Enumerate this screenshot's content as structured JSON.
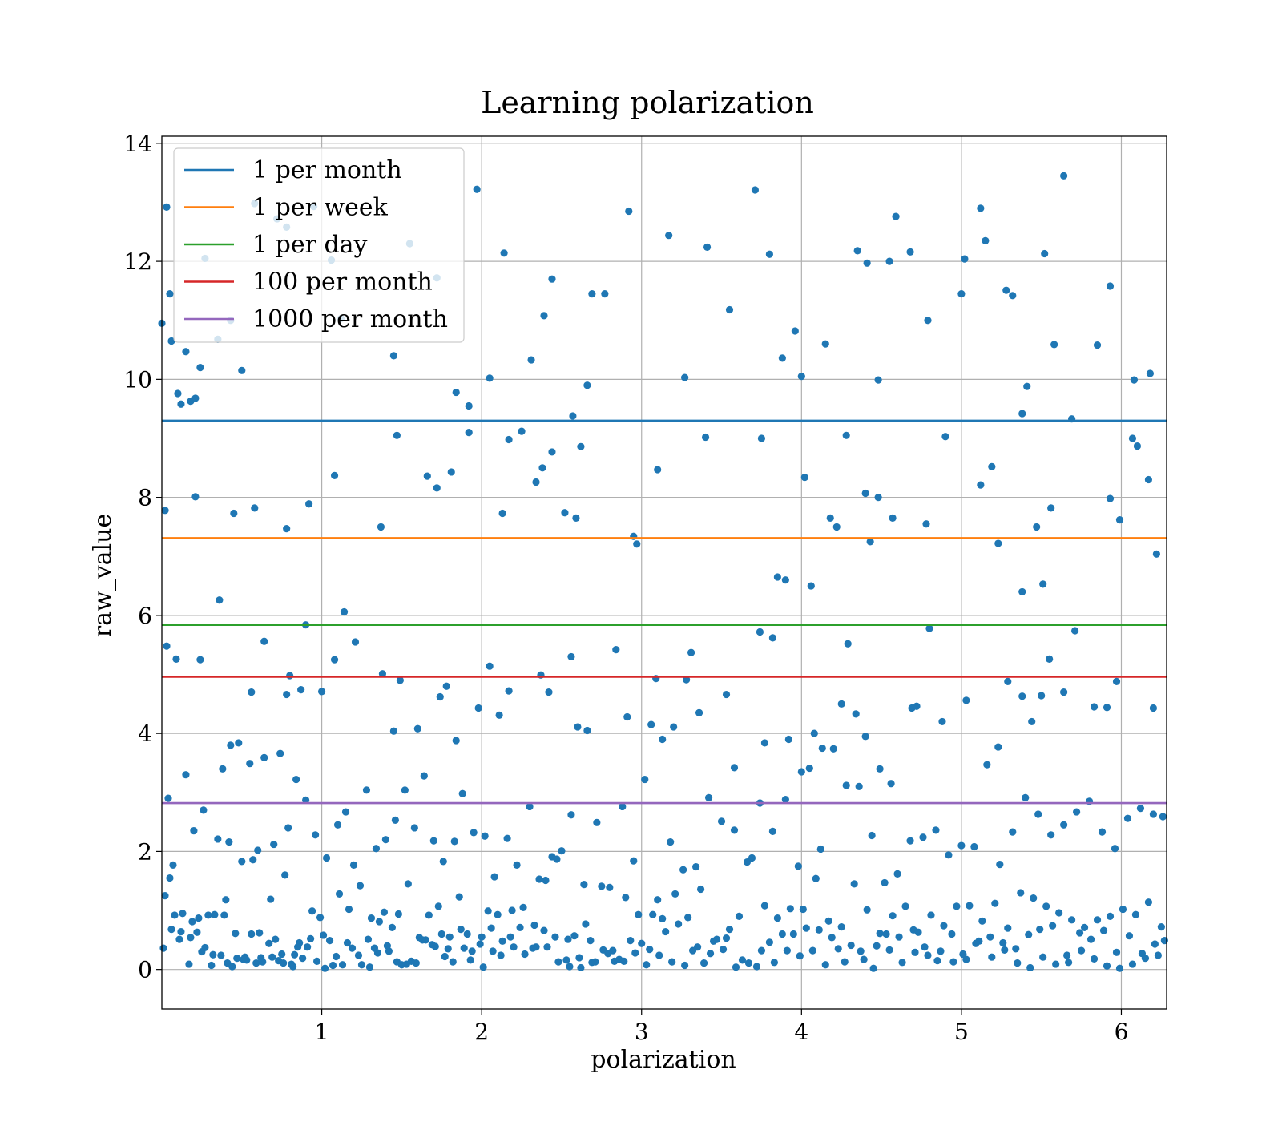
{
  "chart_data": {
    "type": "scatter",
    "title": "Learning polarization",
    "xlabel": "polarization",
    "ylabel": "raw_value",
    "xlim": [
      0,
      6.2832
    ],
    "ylim": [
      -0.67,
      14.12
    ],
    "xticks": [
      1,
      2,
      3,
      4,
      5,
      6
    ],
    "yticks": [
      0,
      2,
      4,
      6,
      8,
      10,
      12,
      14
    ],
    "grid": true,
    "legend_position": "top-left",
    "point_color": "#1f77b4",
    "point_count_note": "",
    "horizontal_lines": [
      {
        "name": "1 per month",
        "y": 9.3,
        "color": "#1f77b4"
      },
      {
        "name": "1 per week",
        "y": 7.31,
        "color": "#ff7f0e"
      },
      {
        "name": "1 per day",
        "y": 5.84,
        "color": "#2ca02c"
      },
      {
        "name": "100 per month",
        "y": 4.96,
        "color": "#d62728"
      },
      {
        "name": "1000 per month",
        "y": 2.82,
        "color": "#9467bd"
      }
    ],
    "points": {
      "x": [
        0.0,
        0.03,
        0.05,
        0.06,
        0.1,
        0.12,
        0.15,
        0.18,
        0.21,
        0.24,
        0.27,
        0.35,
        0.43,
        0.5,
        0.58,
        0.72,
        0.78,
        0.95,
        1.06,
        1.12,
        1.45,
        1.55,
        1.72,
        1.84,
        1.92,
        1.97,
        2.05,
        2.14,
        2.31,
        2.39,
        2.44,
        2.57,
        2.66,
        2.69,
        2.77,
        2.92,
        3.17,
        3.27,
        3.41,
        3.55,
        3.71,
        3.8,
        3.88,
        3.96,
        4.0,
        4.15,
        4.35,
        4.41,
        4.48,
        4.55,
        4.59,
        4.68,
        4.79,
        5.0,
        5.02,
        5.12,
        5.15,
        5.28,
        5.32,
        5.38,
        5.41,
        5.52,
        5.58,
        5.64,
        5.69,
        5.85,
        5.93,
        6.08,
        6.18,
        0.02,
        0.21,
        0.36,
        0.45,
        0.58,
        0.78,
        0.92,
        1.08,
        1.14,
        1.37,
        1.47,
        1.66,
        1.72,
        1.81,
        1.92,
        2.13,
        2.17,
        2.25,
        2.34,
        2.38,
        2.44,
        2.52,
        2.59,
        2.62,
        2.95,
        2.97,
        3.1,
        3.4,
        3.75,
        3.85,
        3.9,
        4.02,
        4.06,
        4.18,
        4.22,
        4.28,
        4.4,
        4.43,
        4.48,
        4.57,
        4.78,
        4.9,
        5.12,
        5.19,
        5.23,
        5.38,
        5.47,
        5.51,
        5.56,
        5.93,
        5.99,
        6.07,
        6.1,
        6.17,
        6.22,
        0.03,
        0.09,
        0.24,
        0.43,
        0.48,
        0.56,
        0.64,
        0.78,
        0.8,
        0.87,
        0.9,
        1.0,
        1.08,
        1.21,
        1.38,
        1.45,
        1.49,
        1.6,
        1.74,
        1.78,
        1.84,
        1.98,
        2.05,
        2.11,
        2.17,
        2.37,
        2.42,
        2.56,
        2.6,
        2.66,
        2.84,
        2.91,
        3.06,
        3.09,
        3.13,
        3.2,
        3.28,
        3.31,
        3.36,
        3.53,
        3.58,
        3.74,
        3.77,
        3.82,
        3.92,
        4.0,
        4.08,
        4.13,
        4.25,
        4.29,
        4.34,
        4.4,
        4.49,
        4.56,
        4.69,
        4.72,
        4.8,
        4.88,
        5.03,
        5.23,
        5.29,
        5.38,
        5.44,
        5.5,
        5.55,
        5.64,
        5.71,
        5.83,
        5.91,
        5.97,
        6.2,
        0.04,
        0.07,
        0.15,
        0.2,
        0.26,
        0.35,
        0.38,
        0.42,
        0.5,
        0.55,
        0.6,
        0.64,
        0.7,
        0.74,
        0.79,
        0.84,
        0.9,
        0.96,
        1.03,
        1.1,
        1.15,
        1.2,
        1.28,
        1.34,
        1.4,
        1.46,
        1.52,
        1.58,
        1.64,
        1.7,
        1.76,
        1.83,
        1.88,
        1.95,
        2.02,
        2.08,
        2.16,
        2.22,
        2.3,
        2.36,
        2.44,
        2.5,
        2.56,
        2.64,
        2.72,
        2.8,
        2.88,
        2.95,
        3.02,
        3.1,
        3.18,
        3.26,
        3.34,
        3.42,
        3.5,
        3.58,
        3.66,
        3.74,
        3.82,
        3.9,
        3.98,
        4.05,
        4.12,
        4.2,
        4.28,
        4.36,
        4.44,
        4.52,
        4.6,
        4.68,
        4.76,
        4.84,
        4.92,
        5.0,
        5.08,
        5.16,
        5.24,
        5.32,
        5.4,
        5.48,
        5.56,
        5.64,
        5.72,
        5.8,
        5.88,
        5.96,
        6.04,
        6.12,
        6.2,
        6.26,
        0.02,
        0.08,
        0.13,
        0.19,
        0.23,
        0.29,
        0.33,
        0.4,
        0.46,
        0.52,
        0.57,
        0.62,
        0.68,
        0.73,
        0.77,
        0.83,
        0.88,
        0.93,
        0.99,
        1.05,
        1.11,
        1.17,
        1.24,
        1.31,
        1.36,
        1.42,
        1.48,
        1.54,
        1.61,
        1.67,
        1.73,
        1.79,
        1.86,
        1.91,
        1.99,
        2.04,
        2.1,
        2.19,
        2.26,
        2.33,
        2.4,
        2.47,
        2.54,
        2.61,
        2.68,
        2.75,
        2.83,
        2.9,
        2.98,
        3.05,
        3.13,
        3.21,
        3.29,
        3.37,
        3.45,
        3.53,
        3.61,
        3.69,
        3.77,
        3.85,
        3.93,
        4.01,
        4.09,
        4.17,
        4.25,
        4.33,
        4.41,
        4.49,
        4.57,
        4.65,
        4.73,
        4.81,
        4.89,
        4.97,
        5.05,
        5.13,
        5.21,
        5.29,
        5.37,
        5.45,
        5.53,
        5.61,
        5.69,
        5.77,
        5.85,
        5.93,
        6.01,
        6.09,
        6.17,
        6.25,
        0.01,
        0.06,
        0.11,
        0.17,
        0.22,
        0.27,
        0.32,
        0.37,
        0.41,
        0.47,
        0.53,
        0.59,
        0.63,
        0.69,
        0.75,
        0.81,
        0.86,
        0.91,
        0.97,
        1.02,
        1.07,
        1.13,
        1.19,
        1.25,
        1.3,
        1.35,
        1.41,
        1.47,
        1.53,
        1.59,
        1.65,
        1.71,
        1.77,
        1.82,
        1.89,
        1.94,
        2.01,
        2.07,
        2.13,
        2.2,
        2.27,
        2.34,
        2.41,
        2.48,
        2.55,
        2.62,
        2.69,
        2.76,
        2.82,
        2.89,
        2.96,
        3.03,
        3.11,
        3.19,
        3.27,
        3.35,
        3.43,
        3.51,
        3.59,
        3.67,
        3.75,
        3.83,
        3.91,
        3.99,
        4.07,
        4.15,
        4.23,
        4.31,
        4.39,
        4.47,
        4.55,
        4.63,
        4.71,
        4.79,
        4.87,
        4.95,
        5.03,
        5.11,
        5.19,
        5.27,
        5.35,
        5.43,
        5.51,
        5.59,
        5.67,
        5.75,
        5.83,
        5.91,
        5.99,
        6.07,
        6.15,
        6.23,
        0.05,
        0.12,
        0.18,
        0.25,
        0.31,
        0.39,
        0.44,
        0.51,
        0.56,
        0.61,
        0.67,
        0.71,
        0.76,
        0.82,
        0.85,
        0.94,
        1.01,
        1.09,
        1.16,
        1.23,
        1.29,
        1.33,
        1.39,
        1.44,
        1.5,
        1.56,
        1.63,
        1.69,
        1.75,
        1.8,
        1.87,
        1.93,
        2.0,
        2.06,
        2.12,
        2.18,
        2.24,
        2.32,
        2.39,
        2.46,
        2.53,
        2.58,
        2.65,
        2.71,
        2.79,
        2.86,
        2.93,
        3.0,
        3.07,
        3.15,
        3.23,
        3.32,
        3.39,
        3.47,
        3.55,
        3.63,
        3.72,
        3.8,
        3.88,
        3.95,
        4.03,
        4.11,
        4.19,
        4.27,
        4.37,
        4.45,
        4.53,
        4.61,
        4.7,
        4.77,
        4.85,
        4.94,
        5.01,
        5.09,
        5.18,
        5.26,
        5.34,
        5.42,
        5.49,
        5.57,
        5.66,
        5.74,
        5.81,
        5.89,
        5.97,
        6.05,
        6.13,
        6.21,
        6.27
      ],
      "y": [
        10.95,
        12.92,
        11.45,
        10.65,
        9.76,
        9.58,
        10.47,
        9.63,
        9.68,
        10.2,
        12.05,
        10.68,
        11.0,
        10.15,
        12.98,
        12.72,
        12.58,
        12.93,
        12.02,
        11.03,
        10.4,
        12.3,
        11.72,
        9.78,
        9.55,
        13.22,
        10.02,
        12.14,
        10.33,
        11.08,
        11.7,
        9.38,
        9.9,
        11.45,
        11.45,
        12.85,
        12.44,
        10.03,
        12.24,
        11.18,
        13.21,
        12.12,
        10.36,
        10.82,
        10.05,
        10.6,
        12.18,
        11.97,
        9.99,
        12.0,
        12.76,
        12.16,
        11.0,
        11.45,
        12.04,
        12.9,
        12.35,
        11.51,
        11.42,
        9.42,
        9.88,
        12.13,
        10.59,
        13.45,
        9.33,
        10.58,
        11.58,
        9.99,
        10.1,
        7.78,
        8.01,
        6.26,
        7.73,
        7.82,
        7.47,
        7.89,
        8.37,
        6.06,
        7.5,
        9.05,
        8.36,
        8.16,
        8.43,
        9.1,
        7.73,
        8.98,
        9.12,
        8.26,
        8.5,
        8.77,
        7.74,
        7.65,
        8.86,
        7.34,
        7.21,
        8.47,
        9.02,
        9.0,
        6.65,
        6.6,
        8.34,
        6.5,
        7.65,
        7.5,
        9.05,
        8.07,
        7.25,
        8.0,
        7.65,
        7.55,
        9.03,
        8.21,
        8.52,
        7.22,
        6.4,
        7.5,
        6.53,
        7.82,
        7.98,
        7.62,
        9.0,
        8.87,
        8.3,
        7.04,
        5.48,
        5.26,
        5.25,
        3.8,
        3.84,
        4.7,
        5.56,
        4.66,
        4.98,
        4.74,
        5.84,
        4.71,
        5.25,
        5.55,
        5.01,
        4.04,
        4.9,
        4.08,
        4.62,
        4.8,
        3.88,
        4.43,
        5.14,
        4.31,
        4.72,
        4.99,
        4.7,
        5.3,
        4.11,
        4.05,
        5.42,
        4.28,
        4.15,
        4.93,
        3.9,
        4.11,
        4.91,
        5.37,
        4.35,
        4.66,
        3.42,
        5.72,
        3.84,
        5.62,
        3.9,
        3.35,
        4.0,
        3.75,
        4.5,
        5.52,
        4.33,
        3.95,
        3.4,
        3.15,
        4.43,
        4.46,
        5.78,
        4.2,
        4.56,
        3.77,
        4.88,
        4.63,
        4.2,
        4.64,
        5.26,
        4.7,
        5.74,
        4.45,
        4.44,
        4.88,
        4.43,
        2.9,
        1.77,
        3.3,
        2.35,
        2.7,
        2.21,
        3.4,
        2.16,
        1.83,
        3.49,
        2.02,
        3.59,
        2.12,
        3.66,
        2.4,
        3.22,
        2.87,
        2.28,
        1.89,
        2.45,
        2.67,
        1.77,
        3.04,
        2.05,
        2.2,
        2.53,
        3.04,
        2.4,
        3.28,
        2.18,
        1.83,
        2.17,
        2.98,
        2.32,
        2.26,
        1.57,
        2.22,
        1.77,
        2.76,
        1.53,
        1.91,
        2.01,
        2.62,
        1.44,
        2.49,
        1.39,
        2.76,
        1.84,
        3.22,
        1.18,
        2.16,
        1.69,
        1.74,
        2.91,
        2.51,
        2.36,
        1.82,
        2.82,
        2.34,
        2.88,
        1.75,
        3.41,
        2.04,
        3.74,
        3.12,
        3.1,
        2.27,
        1.47,
        1.62,
        2.18,
        2.24,
        2.36,
        1.94,
        2.1,
        2.08,
        3.47,
        1.78,
        2.33,
        2.91,
        2.63,
        2.28,
        2.45,
        2.67,
        2.85,
        2.33,
        2.05,
        2.56,
        2.73,
        2.63,
        2.59,
        1.25,
        0.92,
        0.95,
        0.81,
        0.87,
        0.92,
        0.93,
        1.18,
        0.61,
        0.21,
        1.86,
        0.2,
        1.19,
        0.15,
        1.6,
        0.25,
        0.19,
        0.52,
        0.88,
        0.49,
        1.28,
        1.02,
        1.42,
        0.87,
        0.81,
        0.31,
        0.94,
        1.45,
        0.54,
        0.92,
        1.07,
        0.35,
        1.23,
        0.6,
        0.43,
        0.99,
        0.93,
        1.0,
        1.05,
        0.75,
        1.51,
        1.87,
        0.51,
        0.2,
        0.49,
        1.41,
        0.14,
        1.22,
        0.93,
        0.34,
        0.86,
        1.28,
        0.88,
        1.36,
        0.48,
        0.53,
        0.9,
        1.89,
        1.08,
        0.87,
        1.03,
        1.02,
        1.54,
        0.82,
        0.72,
        1.45,
        1.01,
        0.61,
        0.91,
        1.07,
        0.63,
        0.92,
        0.74,
        1.07,
        1.08,
        0.82,
        1.12,
        0.7,
        1.3,
        1.21,
        1.07,
        0.96,
        0.84,
        0.71,
        0.84,
        0.9,
        1.02,
        0.93,
        1.14,
        0.72,
        0.36,
        0.68,
        0.51,
        0.09,
        0.63,
        0.37,
        0.25,
        0.24,
        0.11,
        0.19,
        0.16,
        0.11,
        0.13,
        0.21,
        0.26,
        0.09,
        0.45,
        0.38,
        0.14,
        0.02,
        0.07,
        0.08,
        0.36,
        0.08,
        0.04,
        0.28,
        0.4,
        0.13,
        0.09,
        0.11,
        0.5,
        0.39,
        0.22,
        0.13,
        0.36,
        0.31,
        0.04,
        0.31,
        0.48,
        0.38,
        0.26,
        0.38,
        0.38,
        0.13,
        0.05,
        0.03,
        0.12,
        0.33,
        0.32,
        0.14,
        0.28,
        0.08,
        0.24,
        0.13,
        0.07,
        0.38,
        0.27,
        0.34,
        0.04,
        0.11,
        0.32,
        0.12,
        0.32,
        0.23,
        0.32,
        0.08,
        0.35,
        0.41,
        0.17,
        0.4,
        0.33,
        0.12,
        0.29,
        0.24,
        0.31,
        0.13,
        0.17,
        0.48,
        0.21,
        0.33,
        0.11,
        0.03,
        0.21,
        0.09,
        0.12,
        0.32,
        0.18,
        0.06,
        0.02,
        0.09,
        0.19,
        0.24,
        1.55,
        0.64,
        0.54,
        0.3,
        0.07,
        0.92,
        0.05,
        0.17,
        0.6,
        0.62,
        0.44,
        0.51,
        0.11,
        0.05,
        0.38,
        0.99,
        0.58,
        0.22,
        0.45,
        0.24,
        0.51,
        0.36,
        0.97,
        0.71,
        0.08,
        0.14,
        0.5,
        0.42,
        0.6,
        0.55,
        0.68,
        0.16,
        0.55,
        0.7,
        0.24,
        0.55,
        0.71,
        0.36,
        0.66,
        0.55,
        0.16,
        0.57,
        0.77,
        0.13,
        0.27,
        0.17,
        0.49,
        0.44,
        0.93,
        0.64,
        0.77,
        0.32,
        0.11,
        0.51,
        0.68,
        0.16,
        0.05,
        0.46,
        0.6,
        0.6,
        0.7,
        0.67,
        0.54,
        0.13,
        0.31,
        0.02,
        0.6,
        0.55,
        0.67,
        0.38,
        0.15,
        0.6,
        0.26,
        0.44,
        0.55,
        0.45,
        0.35,
        0.59,
        0.68,
        0.74,
        0.24,
        0.62,
        0.51,
        0.66,
        0.29,
        0.57,
        0.27,
        0.43,
        0.49
      ]
    }
  }
}
